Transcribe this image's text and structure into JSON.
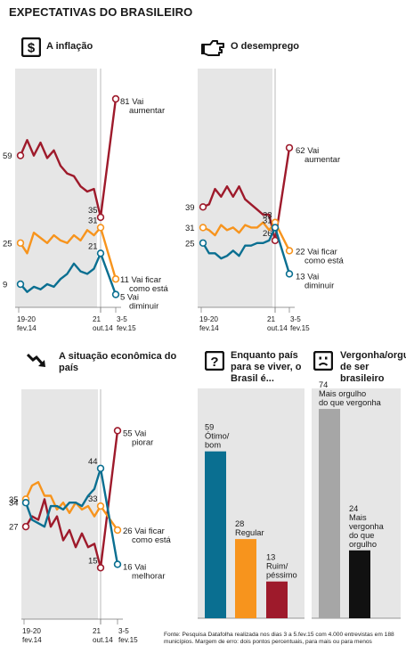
{
  "title": "EXPECTATIVAS DO BRASILEIRO",
  "footer": "Fonte: Pesquisa Datafolha realizada nos dias 3 a 5.fev.15 com 4.000 entrevistas em 188 municípios. Margem de erro: dois pontos percentuais, para mais ou para menos",
  "icons": {
    "inflation": "dollar-icon",
    "unemployment": "pointing-hand-icon",
    "economy": "trend-down-arrow-icon",
    "country": "question-mark-icon",
    "pride": "frown-face-icon"
  },
  "colors": {
    "increase": "#9e1a2b",
    "same": "#f7941d",
    "decrease": "#0a6f91",
    "shade": "#e6e6e6",
    "gray_bar": "#a6a6a6",
    "black_bar": "#111111"
  },
  "panels": {
    "inflation": {
      "title": "A inflação"
    },
    "unemployment": {
      "title": "O desemprego"
    },
    "economy": {
      "title": "A situação econômica do país"
    },
    "country": {
      "title": "Enquanto país para se viver, o Brasil é..."
    },
    "pride": {
      "title": "Vergonha/orgulho de ser brasileiro"
    }
  },
  "chart_data": [
    {
      "id": "inflation",
      "type": "line",
      "title": "A inflação",
      "ylim": [
        0,
        90
      ],
      "x_labels": [
        {
          "line1": "19-20",
          "line2": "fev.14"
        },
        {
          "line1": "21",
          "line2": "out.14"
        },
        {
          "line1": "3-5",
          "line2": "fev.15"
        }
      ],
      "series": [
        {
          "key": "increase",
          "start": 59,
          "end": 81,
          "mid": 35,
          "values": [
            59,
            65,
            59,
            64,
            58,
            61,
            55,
            52,
            51,
            47,
            45,
            46,
            35,
            81
          ],
          "end_label": [
            "81 Vai",
            "aumentar"
          ]
        },
        {
          "key": "same",
          "start": 25,
          "end": 11,
          "mid": 31,
          "values": [
            25,
            21,
            29,
            27,
            25,
            28,
            26,
            25,
            28,
            26,
            30,
            28,
            31,
            11
          ],
          "end_label": [
            "11 Vai ficar",
            "como está"
          ]
        },
        {
          "key": "decrease",
          "start": 9,
          "end": 5,
          "mid": 21,
          "values": [
            9,
            6,
            8,
            7,
            9,
            8,
            11,
            13,
            17,
            14,
            13,
            15,
            21,
            5
          ],
          "end_label": [
            "5 Vai",
            "diminuir"
          ]
        }
      ]
    },
    {
      "id": "unemployment",
      "type": "line",
      "title": "O desemprego",
      "ylim": [
        0,
        90
      ],
      "x_labels": [
        {
          "line1": "19-20",
          "line2": "fev.14"
        },
        {
          "line1": "21",
          "line2": "out.14"
        },
        {
          "line1": "3-5",
          "line2": "fev.15"
        }
      ],
      "series": [
        {
          "key": "increase",
          "start": 39,
          "end": 62,
          "mid": 26,
          "values": [
            39,
            40,
            46,
            43,
            47,
            43,
            47,
            42,
            40,
            38,
            36,
            36,
            26,
            62
          ],
          "end_label": [
            "62 Vai",
            "aumentar"
          ]
        },
        {
          "key": "same",
          "start": 31,
          "end": 22,
          "mid": 33,
          "values": [
            31,
            30,
            28,
            32,
            30,
            31,
            29,
            32,
            31,
            31,
            33,
            30,
            33,
            22
          ],
          "end_label": [
            "22 Vai ficar",
            "como está"
          ]
        },
        {
          "key": "decrease",
          "start": 25,
          "end": 13,
          "mid": 31,
          "values": [
            25,
            21,
            21,
            19,
            20,
            22,
            20,
            24,
            24,
            25,
            25,
            26,
            31,
            13
          ],
          "end_label": [
            "13 Vai",
            "diminuir"
          ]
        }
      ]
    },
    {
      "id": "economy",
      "type": "line",
      "title": "A situação econômica do país",
      "ylim": [
        0,
        65
      ],
      "x_labels": [
        {
          "line1": "19-20",
          "line2": "fev.14"
        },
        {
          "line1": "21",
          "line2": "out.14"
        },
        {
          "line1": "3-5",
          "line2": "fev.15"
        }
      ],
      "series": [
        {
          "key": "increase",
          "start": 27,
          "end": 55,
          "mid": 15,
          "values": [
            27,
            30,
            29,
            35,
            27,
            30,
            23,
            26,
            21,
            25,
            21,
            22,
            15,
            55
          ],
          "end_label": [
            "55 Vai",
            "piorar"
          ]
        },
        {
          "key": "same",
          "start": 35,
          "end": 26,
          "mid": 33,
          "values": [
            35,
            39,
            40,
            36,
            36,
            32,
            34,
            31,
            34,
            32,
            33,
            30,
            33,
            26
          ],
          "end_label": [
            "26 Vai ficar",
            "como está"
          ]
        },
        {
          "key": "decrease",
          "start": 34,
          "end": 16,
          "mid": 44,
          "values": [
            34,
            29,
            28,
            27,
            33,
            33,
            32,
            34,
            34,
            33,
            36,
            38,
            44,
            16
          ],
          "end_label": [
            "16 Vai",
            "melhorar"
          ]
        }
      ]
    },
    {
      "id": "country",
      "type": "bar",
      "title": "Enquanto país para se viver, o Brasil é...",
      "ylim": [
        0,
        80
      ],
      "bars": [
        {
          "value": 59,
          "label_lines": [
            "59",
            "Ótimo/",
            "bom"
          ],
          "color_key": "decrease"
        },
        {
          "value": 28,
          "label_lines": [
            "28",
            "Regular"
          ],
          "color_key": "same"
        },
        {
          "value": 13,
          "label_lines": [
            "13",
            "Ruim/",
            "péssimo"
          ],
          "color_key": "increase"
        }
      ]
    },
    {
      "id": "pride",
      "type": "bar",
      "title": "Vergonha/orgulho de ser brasileiro",
      "ylim": [
        0,
        80
      ],
      "bars": [
        {
          "value": 74,
          "label_lines": [
            "74",
            "Mais orgulho",
            "do que vergonha"
          ],
          "color_key": "gray_bar"
        },
        {
          "value": 24,
          "label_lines": [
            "24",
            "Mais",
            "vergonha",
            "do que",
            "orgulho"
          ],
          "color_key": "black_bar"
        }
      ]
    }
  ]
}
